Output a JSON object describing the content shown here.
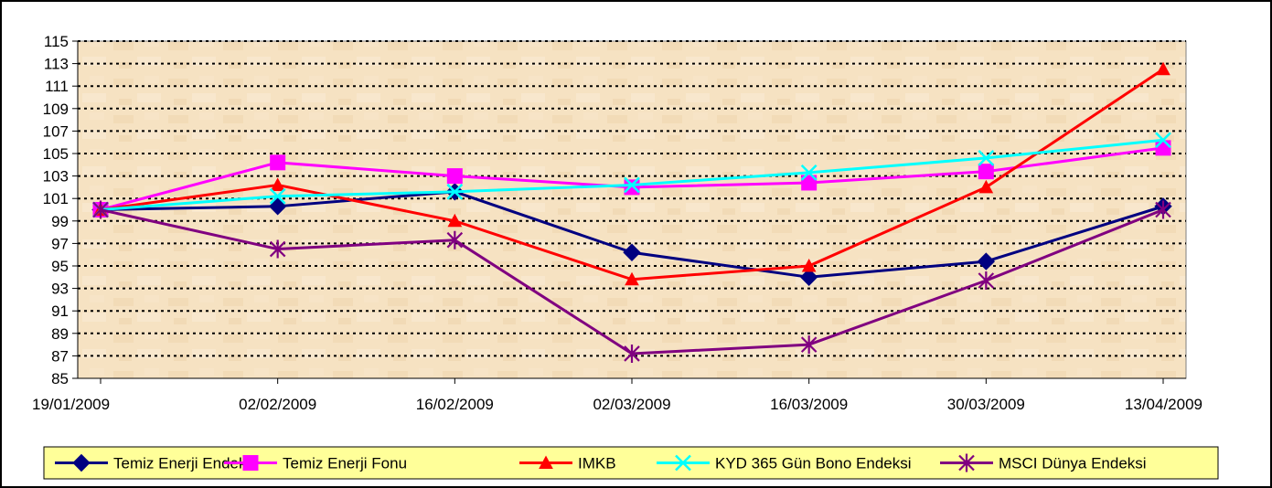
{
  "chart_data": {
    "type": "line",
    "title": "",
    "xlabel": "",
    "ylabel": "",
    "ylim": [
      85,
      115
    ],
    "yticks": [
      85,
      87,
      89,
      91,
      93,
      95,
      97,
      99,
      101,
      103,
      105,
      107,
      109,
      111,
      113,
      115
    ],
    "categories": [
      "19/01/2009",
      "02/02/2009",
      "16/02/2009",
      "02/03/2009",
      "16/03/2009",
      "30/03/2009",
      "13/04/2009"
    ],
    "grid": true,
    "legend_position": "bottom",
    "series": [
      {
        "name": "Temiz Enerji Endeksi",
        "color": "#000080",
        "marker": "diamond",
        "points": [
          {
            "x": "19/01/2009",
            "y": 100
          },
          {
            "x": "02/02/2009",
            "y": 100.3
          },
          {
            "x": "16/02/2009",
            "y": 101.6
          },
          {
            "x": "02/03/2009",
            "y": 96.2
          },
          {
            "x": "16/03/2009",
            "y": 94
          },
          {
            "x": "30/03/2009",
            "y": 95.4
          },
          {
            "x": "13/04/2009",
            "y": 100.3
          }
        ]
      },
      {
        "name": "Temiz Enerji Fonu",
        "color": "#ff00ff",
        "marker": "square",
        "points": [
          {
            "x": "19/01/2009",
            "y": 100
          },
          {
            "x": "02/02/2009",
            "y": 104.2
          },
          {
            "x": "16/02/2009",
            "y": 103
          },
          {
            "x": "02/03/2009",
            "y": 102
          },
          {
            "x": "16/03/2009",
            "y": 102.4
          },
          {
            "x": "30/03/2009",
            "y": 103.4
          },
          {
            "x": "13/04/2009",
            "y": 105.5
          }
        ]
      },
      {
        "name": "IMKB",
        "color": "#ff0000",
        "marker": "triangle",
        "points": [
          {
            "x": "19/01/2009",
            "y": 100
          },
          {
            "x": "02/02/2009",
            "y": 102.2
          },
          {
            "x": "16/02/2009",
            "y": 99
          },
          {
            "x": "02/03/2009",
            "y": 93.8
          },
          {
            "x": "16/03/2009",
            "y": 95
          },
          {
            "x": "30/03/2009",
            "y": 102
          },
          {
            "x": "13/04/2009",
            "y": 112.5
          }
        ]
      },
      {
        "name": "KYD 365 Gün Bono Endeksi",
        "color": "#00ffff",
        "marker": "x",
        "points": [
          {
            "x": "19/01/2009",
            "y": 100
          },
          {
            "x": "02/02/2009",
            "y": 101.2
          },
          {
            "x": "16/02/2009",
            "y": 101.6
          },
          {
            "x": "02/03/2009",
            "y": 102.2
          },
          {
            "x": "16/03/2009",
            "y": 103.3
          },
          {
            "x": "30/03/2009",
            "y": 104.6
          },
          {
            "x": "13/04/2009",
            "y": 106.2
          }
        ]
      },
      {
        "name": "MSCI Dünya Endeksi",
        "color": "#800080",
        "marker": "star",
        "points": [
          {
            "x": "19/01/2009",
            "y": 100
          },
          {
            "x": "02/02/2009",
            "y": 96.5
          },
          {
            "x": "16/02/2009",
            "y": 97.3
          },
          {
            "x": "02/03/2009",
            "y": 87.2
          },
          {
            "x": "16/03/2009",
            "y": 88
          },
          {
            "x": "30/03/2009",
            "y": 93.7
          },
          {
            "x": "13/04/2009",
            "y": 100
          }
        ]
      }
    ]
  }
}
